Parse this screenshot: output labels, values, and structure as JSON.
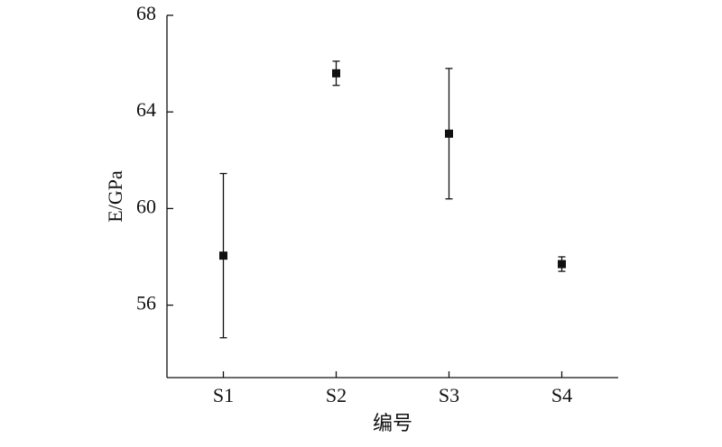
{
  "chart_data": {
    "type": "errorbar",
    "y_label": "E/GPa",
    "x_label": "编号",
    "categories": [
      "S1",
      "S2",
      "S3",
      "S4"
    ],
    "values": [
      58.05,
      65.6,
      63.1,
      57.7
    ],
    "errors": [
      3.4,
      0.5,
      2.7,
      0.3
    ],
    "color": "#111111",
    "ylim": [
      53,
      68
    ],
    "yticks": [
      56,
      60,
      64,
      68
    ],
    "grid": false
  }
}
